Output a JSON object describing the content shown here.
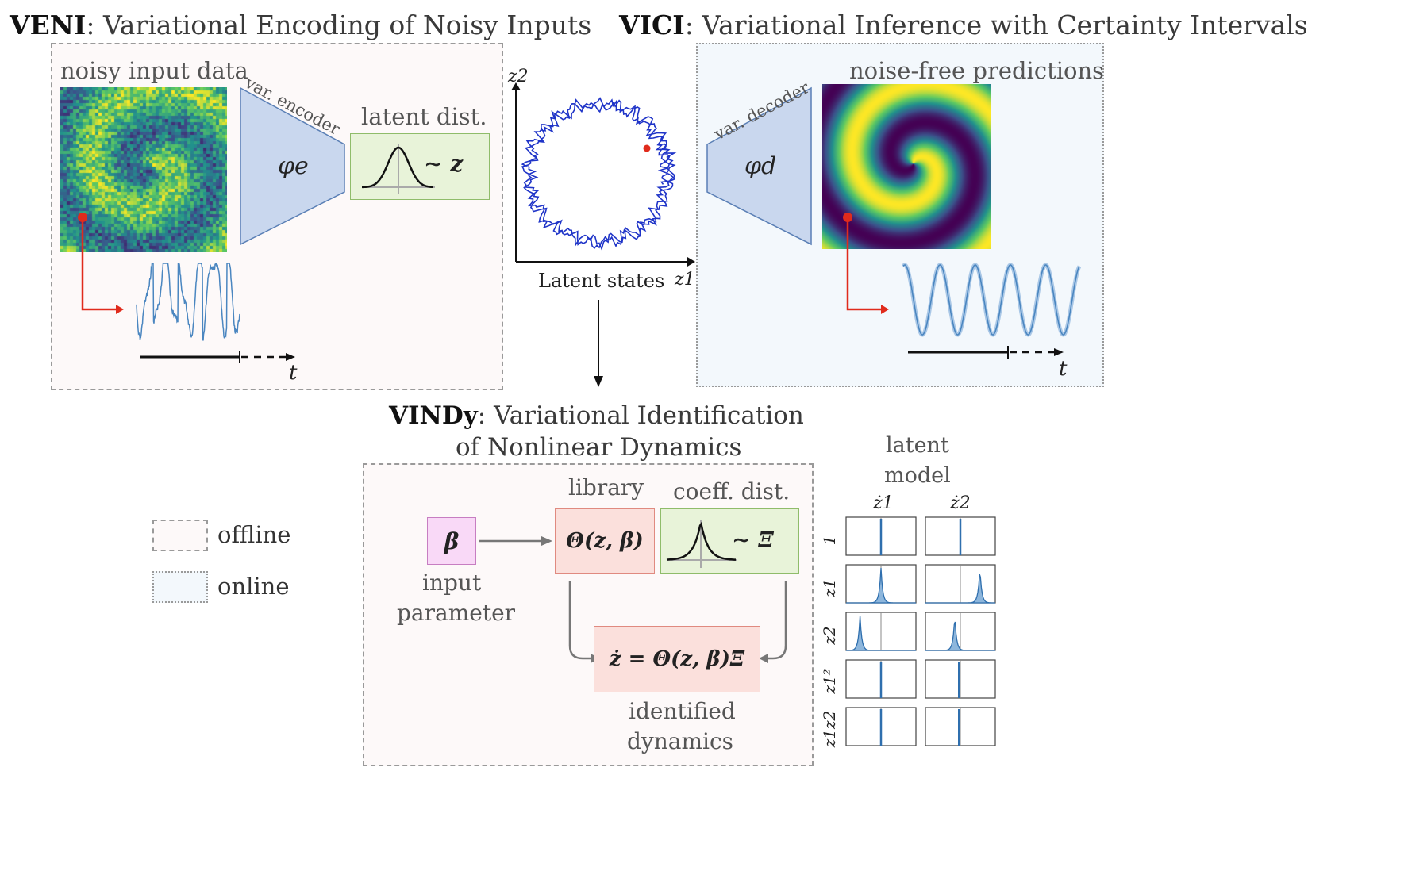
{
  "veni": {
    "bold": "VENI",
    "rest": ": Variational Encoding of Noisy Inputs",
    "input_label": "noisy input data",
    "encoder_label": "var. encoder",
    "encoder_symbol": "φe",
    "latent_label": "latent dist.",
    "latent_expr": "∼ z",
    "time_axis": "t"
  },
  "vici": {
    "bold": "VICI",
    "rest": ": Variational Inference with Certainty Intervals",
    "decoder_label": "var. decoder",
    "decoder_symbol": "φd",
    "output_label": "noise-free predictions",
    "time_axis": "t"
  },
  "latent": {
    "caption": "Latent states",
    "x_axis": "z1",
    "y_axis": "z2"
  },
  "vindy": {
    "bold": "VINDy",
    "rest": ": Variational Identification",
    "line2": "of Nonlinear Dynamics",
    "param_symbol": "β",
    "param_label_1": "input",
    "param_label_2": "parameter",
    "library_label": "library",
    "library_expr": "Θ(z, β)",
    "coeff_label": "coeff. dist.",
    "coeff_expr": "∼ Ξ",
    "dynamics_expr": "ż = Θ(z, β)Ξ",
    "dynamics_label_1": "identified",
    "dynamics_label_2": "dynamics"
  },
  "legend": {
    "offline": "offline",
    "online": "online"
  },
  "latent_model": {
    "title_1": "latent",
    "title_2": "model",
    "columns": [
      "ż1",
      "ż2"
    ],
    "rows": [
      "1",
      "z1",
      "z2",
      "z1²",
      "z1z2"
    ]
  },
  "colors": {
    "encoder": "#c9d7ee",
    "latent_box": "#e8f3d9",
    "library_box": "#fbe0dc",
    "param_box": "#f9d9f7",
    "trajectory": "#1f34c8",
    "signal": "#4a86c0",
    "red": "#e02b1c"
  }
}
